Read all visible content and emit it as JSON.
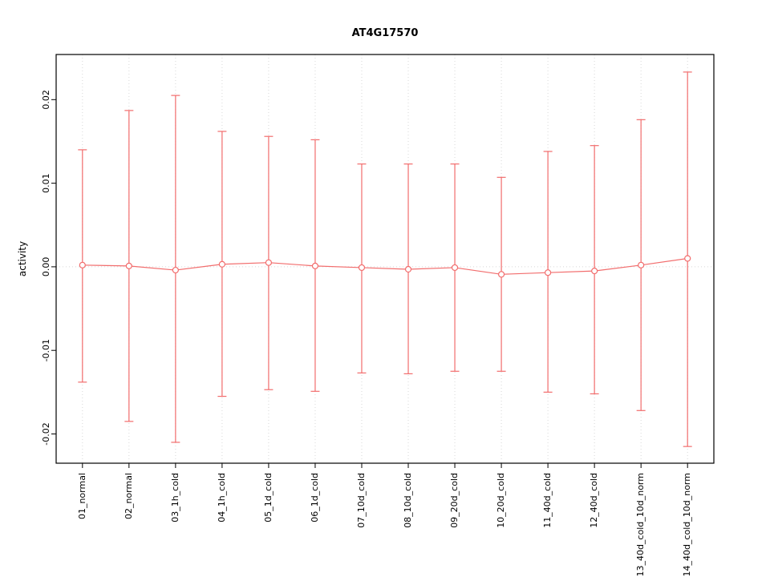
{
  "chart_data": {
    "type": "line",
    "title": "AT4G17570",
    "ylabel": "activity",
    "xlabel": "",
    "categories": [
      "01_normal",
      "02_normal",
      "03_1h_cold",
      "04_1h_cold",
      "05_1d_cold",
      "06_1d_cold",
      "07_10d_cold",
      "08_10d_cold",
      "09_20d_cold",
      "10_20d_cold",
      "11_40d_cold",
      "12_40d_cold",
      "13_40d_cold_10d_norm",
      "14_40d_cold_10d_norm"
    ],
    "series": [
      {
        "name": "activity mean",
        "values": [
          0.0002,
          0.0001,
          -0.0004,
          0.0003,
          0.0005,
          0.0001,
          -0.0001,
          -0.0003,
          -0.0001,
          -0.0009,
          -0.0007,
          -0.0005,
          0.0002,
          0.001
        ],
        "upper": [
          0.014,
          0.0187,
          0.0205,
          0.0162,
          0.0156,
          0.0152,
          0.0123,
          0.0123,
          0.0123,
          0.0107,
          0.0138,
          0.0145,
          0.0176,
          0.0233
        ],
        "lower": [
          -0.0138,
          -0.0185,
          -0.021,
          -0.0155,
          -0.0147,
          -0.0149,
          -0.0127,
          -0.0128,
          -0.0125,
          -0.0125,
          -0.015,
          -0.0152,
          -0.0172,
          -0.0215
        ]
      }
    ],
    "yticks": [
      {
        "value": -0.02,
        "label": "-0.02"
      },
      {
        "value": -0.01,
        "label": "-0.01"
      },
      {
        "value": 0.0,
        "label": "0.00"
      },
      {
        "value": 0.01,
        "label": "0.01"
      },
      {
        "value": 0.02,
        "label": "0.02"
      }
    ],
    "ylim": [
      -0.0235,
      0.0254
    ],
    "grid": "dotted vertical gridline per category; dotted horizontal line at y=0",
    "legend": "none",
    "colors": {
      "series": "#f26d6d",
      "grid": "#d8d8d8",
      "axis": "#000000",
      "point_fill": "#ffffff"
    }
  }
}
